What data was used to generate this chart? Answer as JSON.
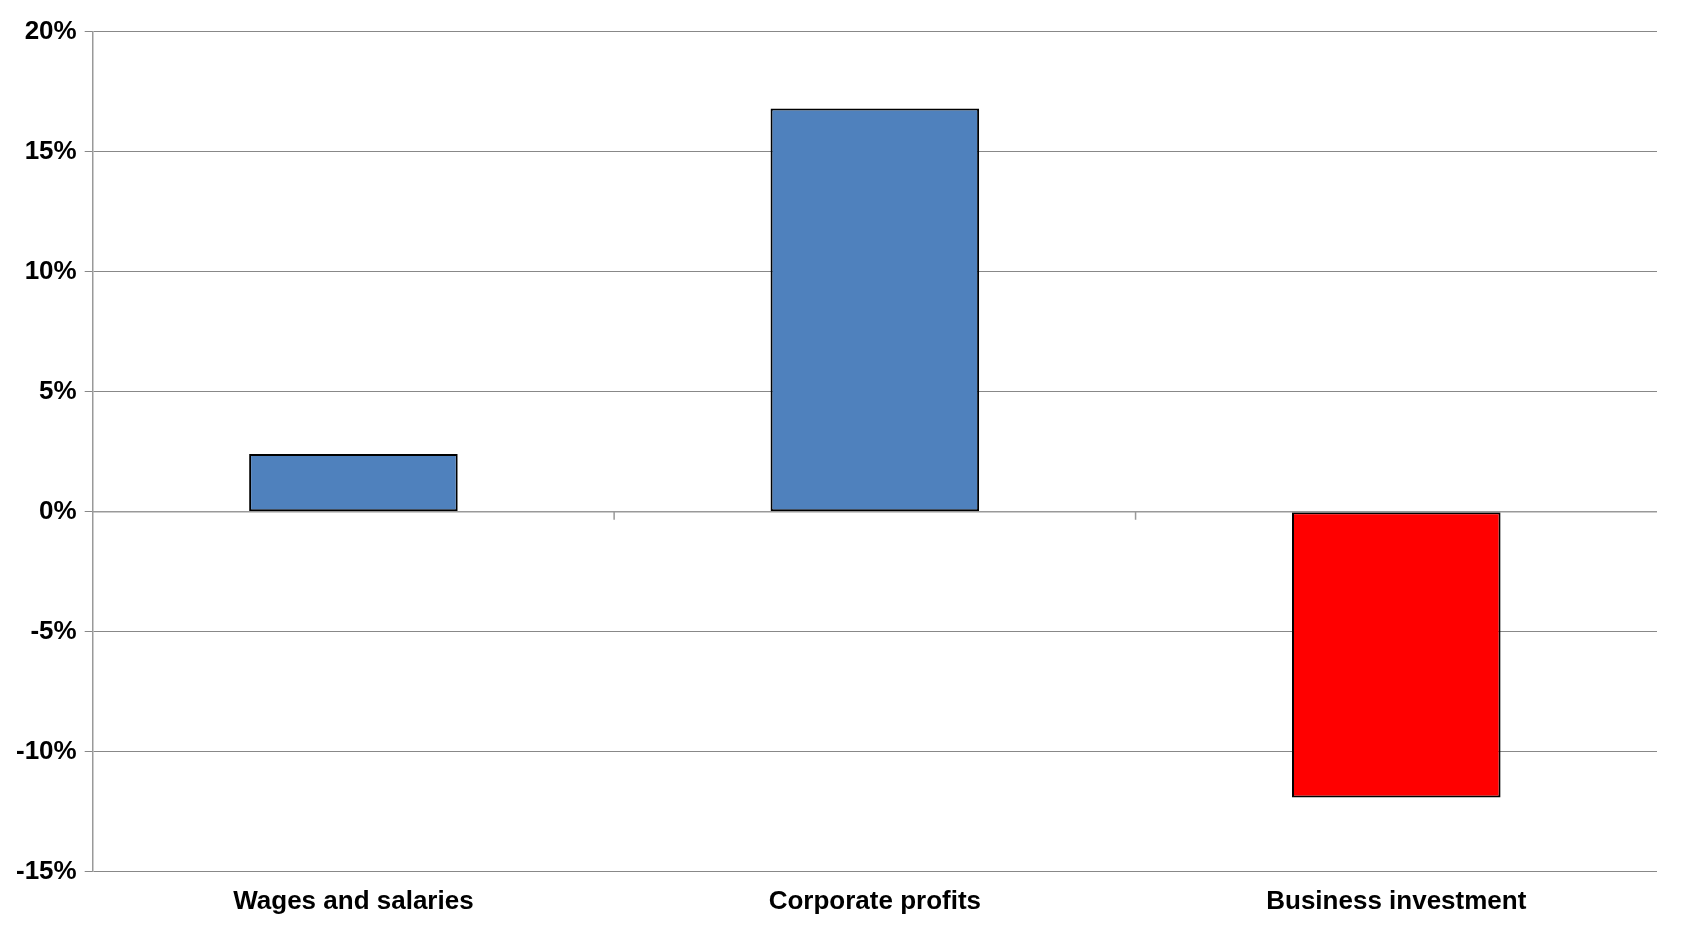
{
  "chart_data": {
    "type": "bar",
    "categories": [
      "Wages and salaries",
      "Corporate profits",
      "Business investment"
    ],
    "values": [
      2.4,
      16.8,
      -11.9
    ],
    "colors": [
      "#4f81bd",
      "#4f81bd",
      "#ff0000"
    ],
    "ylim": [
      -15,
      20
    ],
    "yticks": [
      {
        "value": -15,
        "label": "-15%"
      },
      {
        "value": -10,
        "label": "-10%"
      },
      {
        "value": -5,
        "label": "-5%"
      },
      {
        "value": 0,
        "label": "0%"
      },
      {
        "value": 5,
        "label": "5%"
      },
      {
        "value": 10,
        "label": "10%"
      },
      {
        "value": 15,
        "label": "15%"
      },
      {
        "value": 20,
        "label": "20%"
      }
    ],
    "grid": "y"
  }
}
